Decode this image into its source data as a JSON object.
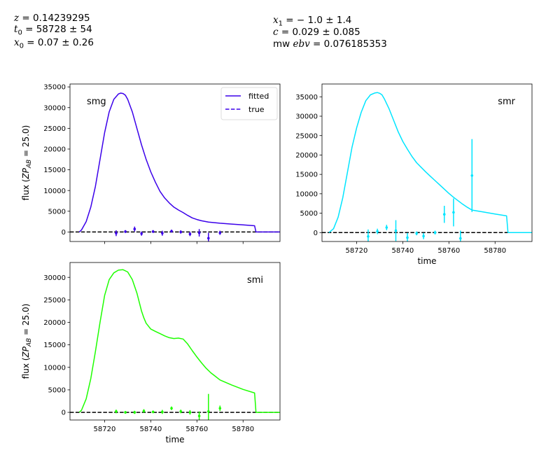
{
  "header": {
    "z": "0.14239295",
    "t0": "58728 ± 54",
    "x0": "0.07 ± 0.26",
    "x1": "− 1.0 ± 1.4",
    "c": "0.029 ± 0.085",
    "mwebv": "0.076185353"
  },
  "colors": {
    "smg": "#3b00ea",
    "smr": "#00e5ff",
    "smi": "#1eff00",
    "baseline": "#000000"
  },
  "chart_data": [
    {
      "type": "line",
      "title": "smg",
      "xlabel": "",
      "ylabel": "flux (ZP_AB = 25.0)",
      "ylabel_parts": {
        "flux": "flux (",
        "zp": "ZP",
        "ab": "AB",
        "eq": " = 25.0)"
      },
      "xlim": [
        58705,
        58796
      ],
      "ylim": [
        -2300,
        35700
      ],
      "xticks": [],
      "yticks": [
        0,
        5000,
        10000,
        15000,
        20000,
        25000,
        30000,
        35000
      ],
      "legend": {
        "placement": "top-right",
        "entries": [
          "fitted",
          "true"
        ]
      },
      "series": [
        {
          "name": "fitted",
          "style": "solid",
          "x": [
            58709,
            58710,
            58712,
            58714,
            58716,
            58718,
            58720,
            58722,
            58724,
            58726,
            58727,
            58728,
            58729,
            58730,
            58732,
            58734,
            58736,
            58738,
            58740,
            58742,
            58744,
            58746,
            58748,
            58750,
            58752,
            58754,
            58756,
            58758,
            58760,
            58762,
            58765,
            58770,
            58775,
            58780,
            58785,
            58785.6,
            58796
          ],
          "y": [
            0,
            500,
            2500,
            6000,
            11000,
            17500,
            24000,
            29000,
            32000,
            33300,
            33500,
            33400,
            33000,
            32000,
            29000,
            25000,
            21000,
            17500,
            14500,
            12000,
            9800,
            8200,
            7000,
            6000,
            5300,
            4700,
            4000,
            3400,
            3000,
            2700,
            2400,
            2100,
            1900,
            1700,
            1500,
            0,
            0
          ]
        },
        {
          "name": "true",
          "style": "dashed",
          "x": [
            58705,
            58796
          ],
          "y": [
            0,
            0
          ]
        }
      ],
      "points": [
        {
          "x": 58725,
          "y": -300,
          "err": 700
        },
        {
          "x": 58729,
          "y": 100,
          "err": 350
        },
        {
          "x": 58733,
          "y": 700,
          "err": 600
        },
        {
          "x": 58736,
          "y": -400,
          "err": 500
        },
        {
          "x": 58741,
          "y": 100,
          "err": 350
        },
        {
          "x": 58745,
          "y": -300,
          "err": 600
        },
        {
          "x": 58749,
          "y": 200,
          "err": 350
        },
        {
          "x": 58753,
          "y": 0,
          "err": 400
        },
        {
          "x": 58757,
          "y": -500,
          "err": 500
        },
        {
          "x": 58761,
          "y": -200,
          "err": 900
        },
        {
          "x": 58765,
          "y": -1500,
          "err": 1300
        },
        {
          "x": 58770,
          "y": -200,
          "err": 500
        }
      ]
    },
    {
      "type": "line",
      "title": "smr",
      "xlabel": "time",
      "ylabel": "",
      "xlim": [
        58705,
        58796
      ],
      "ylim": [
        -2300,
        38300
      ],
      "xticks": [
        58720,
        58740,
        58760,
        58780
      ],
      "yticks": [
        0,
        5000,
        10000,
        15000,
        20000,
        25000,
        30000,
        35000
      ],
      "series": [
        {
          "name": "fitted",
          "style": "solid",
          "x": [
            58708,
            58710,
            58712,
            58714,
            58716,
            58718,
            58720,
            58722,
            58724,
            58726,
            58728,
            58729,
            58730,
            58731,
            58732,
            58734,
            58736,
            58738,
            58740,
            58742,
            58744,
            58746,
            58748,
            58750,
            58752,
            58754,
            58756,
            58758,
            58760,
            58762,
            58764,
            58766,
            58768,
            58770,
            58775,
            58780,
            58785,
            58785.6,
            58796
          ],
          "y": [
            0,
            1000,
            4000,
            9000,
            15500,
            22000,
            27000,
            31000,
            34000,
            35500,
            36000,
            36100,
            35900,
            35500,
            34500,
            32000,
            29000,
            26000,
            23500,
            21500,
            19600,
            18000,
            16800,
            15600,
            14500,
            13400,
            12300,
            11200,
            10100,
            9100,
            8200,
            7300,
            6500,
            5800,
            5300,
            4800,
            4300,
            0,
            0
          ]
        },
        {
          "name": "true",
          "style": "dashed",
          "x": [
            58705,
            58796
          ],
          "y": [
            0,
            0
          ]
        }
      ],
      "points": [
        {
          "x": 58725,
          "y": -1000,
          "err": 1800
        },
        {
          "x": 58729,
          "y": 300,
          "err": 700
        },
        {
          "x": 58733,
          "y": 1300,
          "err": 700
        },
        {
          "x": 58737,
          "y": 500,
          "err": 2700
        },
        {
          "x": 58742,
          "y": -1300,
          "err": 1200
        },
        {
          "x": 58746,
          "y": -200,
          "err": 500
        },
        {
          "x": 58749,
          "y": -900,
          "err": 800
        },
        {
          "x": 58754,
          "y": 0,
          "err": 500
        },
        {
          "x": 58758,
          "y": 4700,
          "err": 2200
        },
        {
          "x": 58762,
          "y": 5200,
          "err": 3600
        },
        {
          "x": 58765,
          "y": -1500,
          "err": 2000
        },
        {
          "x": 58770,
          "y": 14700,
          "err": 9400
        }
      ]
    },
    {
      "type": "line",
      "title": "smi",
      "xlabel": "time",
      "ylabel": "flux (ZP_AB = 25.0)",
      "ylabel_parts": {
        "flux": "flux (",
        "zp": "ZP",
        "ab": "AB",
        "eq": " = 25.0)"
      },
      "xlim": [
        58705,
        58796
      ],
      "ylim": [
        -1700,
        33300
      ],
      "xticks": [
        58720,
        58740,
        58760,
        58780
      ],
      "yticks": [
        0,
        5000,
        10000,
        15000,
        20000,
        25000,
        30000
      ],
      "series": [
        {
          "name": "fitted",
          "style": "solid",
          "x": [
            58709,
            58710,
            58712,
            58714,
            58716,
            58718,
            58720,
            58722,
            58724,
            58726,
            58728,
            58730,
            58732,
            58734,
            58736,
            58737,
            58738,
            58740,
            58742,
            58744,
            58746,
            58748,
            58750,
            58752,
            58754,
            58756,
            58758,
            58760,
            58762,
            58764,
            58766,
            58768,
            58770,
            58775,
            58780,
            58785,
            58785.6,
            58796
          ],
          "y": [
            0,
            500,
            3000,
            7500,
            13500,
            20000,
            26000,
            29500,
            31000,
            31600,
            31700,
            31200,
            29500,
            26500,
            22500,
            21000,
            19800,
            18500,
            18000,
            17500,
            17000,
            16600,
            16400,
            16500,
            16300,
            15200,
            13700,
            12300,
            11000,
            9800,
            8800,
            8000,
            7200,
            6100,
            5100,
            4300,
            0,
            0
          ]
        },
        {
          "name": "true",
          "style": "dashed",
          "x": [
            58705,
            58796
          ],
          "y": [
            0,
            0
          ]
        }
      ],
      "points": [
        {
          "x": 58725,
          "y": 200,
          "err": 400
        },
        {
          "x": 58729,
          "y": 0,
          "err": 300
        },
        {
          "x": 58733,
          "y": 0,
          "err": 350
        },
        {
          "x": 58737,
          "y": 300,
          "err": 400
        },
        {
          "x": 58741,
          "y": 100,
          "err": 300
        },
        {
          "x": 58745,
          "y": 100,
          "err": 450
        },
        {
          "x": 58749,
          "y": 900,
          "err": 400
        },
        {
          "x": 58753,
          "y": 200,
          "err": 400
        },
        {
          "x": 58757,
          "y": 0,
          "err": 500
        },
        {
          "x": 58761,
          "y": -800,
          "err": 1000
        },
        {
          "x": 58765,
          "y": 200,
          "err": 3900
        },
        {
          "x": 58770,
          "y": 900,
          "err": 600
        }
      ]
    }
  ]
}
